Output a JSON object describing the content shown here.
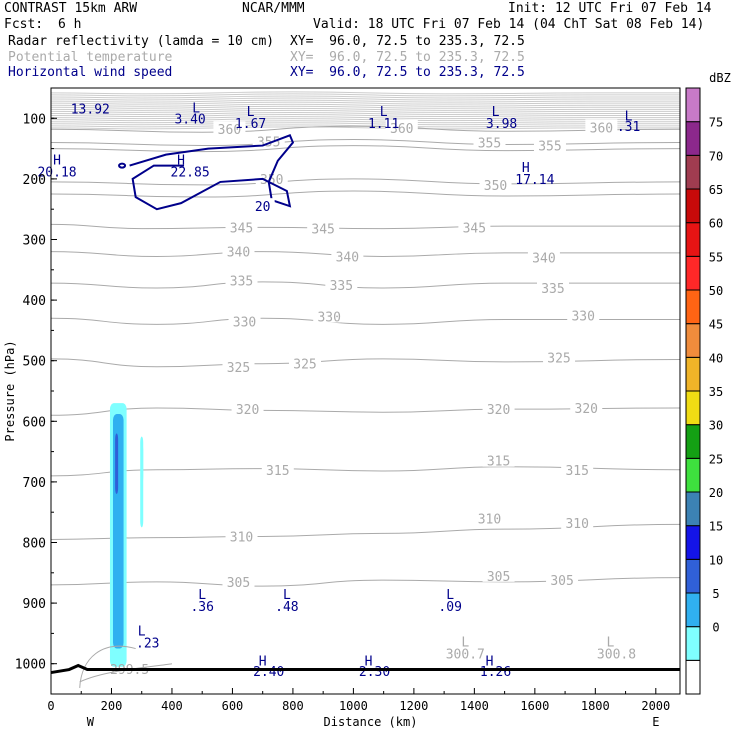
{
  "header": {
    "model": "CONTRAST 15km ARW",
    "org": "NCAR/MMM",
    "init": "Init: 12 UTC Fri 07 Feb 14",
    "fcst_label": "Fcst:",
    "fcst_value": "6 h",
    "valid": "Valid: 18 UTC Fri 07 Feb 14 (04 ChT Sat 08 Feb 14)",
    "field1": "Radar reflectivity (lamda = 10 cm)",
    "field1_xy": "XY=  96.0, 72.5 to 235.3, 72.5",
    "field2": "Potential temperature",
    "field2_xy": "XY=  96.0, 72.5 to 235.3, 72.5",
    "field3": "Horizontal wind speed",
    "field3_xy": "XY=  96.0, 72.5 to 235.3, 72.5"
  },
  "colors": {
    "navy": "#00008b",
    "gray": "#aaaaaa",
    "light_gray_stack": "#cccccc"
  },
  "chart_data": {
    "type": "cross-section",
    "xlabel": "Distance (km)",
    "ylabel": "Pressure (hPa)",
    "xlim": [
      0,
      2080
    ],
    "ylim": [
      1050,
      50
    ],
    "x_ticks": [
      0,
      200,
      400,
      600,
      800,
      1000,
      1200,
      1400,
      1600,
      1800,
      2000
    ],
    "y_ticks": [
      100,
      200,
      300,
      400,
      500,
      600,
      700,
      800,
      900,
      1000
    ],
    "west_label": "W",
    "east_label": "E",
    "theta_contours": [
      {
        "theta": 345,
        "points": [
          [
            0,
            275
          ],
          [
            300,
            282
          ],
          [
            700,
            280
          ],
          [
            1100,
            282
          ],
          [
            1500,
            278
          ],
          [
            2080,
            278
          ]
        ],
        "labels": [
          [
            630,
            280
          ],
          [
            900,
            282
          ],
          [
            1400,
            280
          ]
        ]
      },
      {
        "theta": 340,
        "points": [
          [
            0,
            320
          ],
          [
            350,
            328
          ],
          [
            700,
            320
          ],
          [
            1100,
            328
          ],
          [
            1500,
            322
          ],
          [
            2080,
            322
          ]
        ],
        "labels": [
          [
            620,
            320
          ],
          [
            980,
            328
          ],
          [
            1630,
            330
          ]
        ]
      },
      {
        "theta": 335,
        "points": [
          [
            0,
            372
          ],
          [
            350,
            380
          ],
          [
            700,
            370
          ],
          [
            1100,
            380
          ],
          [
            1500,
            372
          ],
          [
            2080,
            372
          ]
        ],
        "labels": [
          [
            630,
            368
          ],
          [
            960,
            375
          ],
          [
            1660,
            380
          ]
        ]
      },
      {
        "theta": 330,
        "points": [
          [
            0,
            430
          ],
          [
            350,
            440
          ],
          [
            700,
            430
          ],
          [
            1100,
            440
          ],
          [
            1500,
            432
          ],
          [
            2080,
            432
          ]
        ],
        "labels": [
          [
            640,
            435
          ],
          [
            920,
            427
          ],
          [
            1760,
            425
          ]
        ]
      },
      {
        "theta": 325,
        "points": [
          [
            0,
            497
          ],
          [
            350,
            510
          ],
          [
            700,
            505
          ],
          [
            1100,
            497
          ],
          [
            1500,
            502
          ],
          [
            2080,
            498
          ]
        ],
        "labels": [
          [
            620,
            510
          ],
          [
            840,
            505
          ],
          [
            1680,
            495
          ]
        ]
      },
      {
        "theta": 320,
        "points": [
          [
            0,
            590
          ],
          [
            350,
            578
          ],
          [
            700,
            582
          ],
          [
            1100,
            585
          ],
          [
            1500,
            580
          ],
          [
            2080,
            578
          ]
        ],
        "labels": [
          [
            650,
            580
          ],
          [
            1480,
            580
          ],
          [
            1770,
            578
          ]
        ]
      },
      {
        "theta": 315,
        "points": [
          [
            0,
            690
          ],
          [
            350,
            680
          ],
          [
            700,
            678
          ],
          [
            1100,
            682
          ],
          [
            1500,
            675
          ],
          [
            2080,
            680
          ]
        ],
        "labels": [
          [
            750,
            680
          ],
          [
            1480,
            665
          ],
          [
            1740,
            680
          ]
        ]
      },
      {
        "theta": 310,
        "points": [
          [
            0,
            795
          ],
          [
            350,
            792
          ],
          [
            700,
            790
          ],
          [
            1100,
            785
          ],
          [
            1500,
            778
          ],
          [
            2080,
            770
          ]
        ],
        "labels": [
          [
            630,
            790
          ],
          [
            1450,
            760
          ],
          [
            1740,
            768
          ]
        ]
      },
      {
        "theta": 305,
        "points": [
          [
            0,
            870
          ],
          [
            350,
            865
          ],
          [
            700,
            872
          ],
          [
            1100,
            862
          ],
          [
            1500,
            865
          ],
          [
            2080,
            858
          ]
        ],
        "labels": [
          [
            620,
            865
          ],
          [
            1480,
            855
          ],
          [
            1690,
            862
          ]
        ]
      }
    ],
    "theta_upper_labels": [
      {
        "label": "360",
        "x": 590,
        "p": 118
      },
      {
        "label": "360",
        "x": 1160,
        "p": 116
      },
      {
        "label": "360",
        "x": 1820,
        "p": 115
      },
      {
        "label": "355",
        "x": 720,
        "p": 138
      },
      {
        "label": "355",
        "x": 1450,
        "p": 140
      },
      {
        "label": "355",
        "x": 1650,
        "p": 145
      },
      {
        "label": "350",
        "x": 730,
        "p": 200
      },
      {
        "label": "350",
        "x": 1470,
        "p": 210
      }
    ],
    "theta_surface_labels": [
      {
        "label": "L",
        "x": 1370,
        "p": 965
      },
      {
        "label": "300.7",
        "x": 1370,
        "p": 985
      },
      {
        "label": "L",
        "x": 1850,
        "p": 965
      },
      {
        "label": "300.8",
        "x": 1870,
        "p": 985
      },
      {
        "label": "299.5",
        "x": 260,
        "p": 1010
      }
    ],
    "wind_contours": [
      {
        "value": 20,
        "label": "20"
      }
    ],
    "wind_extrema": [
      {
        "label": "H",
        "x": 20,
        "p": 168
      },
      {
        "label": "20.18",
        "x": 20,
        "p": 188
      },
      {
        "label": "H",
        "x": 430,
        "p": 168
      },
      {
        "label": "22.85",
        "x": 460,
        "p": 188
      },
      {
        "label": "H",
        "x": 1570,
        "p": 180
      },
      {
        "label": "17.14",
        "x": 1600,
        "p": 200
      },
      {
        "label": "L",
        "x": 480,
        "p": 82
      },
      {
        "label": "3.40",
        "x": 460,
        "p": 100
      },
      {
        "label": "L",
        "x": 660,
        "p": 88
      },
      {
        "label": "1.67",
        "x": 660,
        "p": 108
      },
      {
        "label": "L",
        "x": 1100,
        "p": 88
      },
      {
        "label": "1.11",
        "x": 1100,
        "p": 108
      },
      {
        "label": "L",
        "x": 1470,
        "p": 88
      },
      {
        "label": "3.98",
        "x": 1490,
        "p": 108
      },
      {
        "label": "L",
        "x": 1910,
        "p": 95
      },
      {
        "label": ".31",
        "x": 1910,
        "p": 113
      },
      {
        "label": "13.92",
        "x": 130,
        "p": 84
      },
      {
        "label": "L",
        "x": 500,
        "p": 885
      },
      {
        "label": ".36",
        "x": 500,
        "p": 905
      },
      {
        "label": "L",
        "x": 780,
        "p": 885
      },
      {
        "label": ".48",
        "x": 780,
        "p": 905
      },
      {
        "label": "L",
        "x": 1320,
        "p": 885
      },
      {
        "label": ".09",
        "x": 1320,
        "p": 905
      },
      {
        "label": "L",
        "x": 300,
        "p": 945
      },
      {
        "label": ".23",
        "x": 320,
        "p": 965
      },
      {
        "label": "H",
        "x": 700,
        "p": 995
      },
      {
        "label": "2.40",
        "x": 720,
        "p": 1012
      },
      {
        "label": "H",
        "x": 1050,
        "p": 995
      },
      {
        "label": "2.30",
        "x": 1070,
        "p": 1012
      },
      {
        "label": "H",
        "x": 1450,
        "p": 995
      },
      {
        "label": "1.26",
        "x": 1470,
        "p": 1012
      }
    ],
    "reflectivity_cells": [
      {
        "dbz": 5,
        "x0": 195,
        "x1": 250,
        "p0": 570,
        "p1": 1005
      },
      {
        "dbz": 10,
        "x0": 205,
        "x1": 240,
        "p0": 588,
        "p1": 975
      },
      {
        "dbz": 15,
        "x0": 212,
        "x1": 222,
        "p0": 620,
        "p1": 720
      },
      {
        "dbz": 5,
        "x0": 295,
        "x1": 305,
        "p0": 625,
        "p1": 775
      },
      {
        "dbz": 5,
        "x0": 300,
        "x1": 305,
        "p0": 640,
        "p1": 700
      }
    ],
    "colorbar": {
      "unit": "dBZ",
      "levels": [
        "0",
        "5",
        "10",
        "15",
        "20",
        "25",
        "30",
        "35",
        "40",
        "45",
        "50",
        "55",
        "60",
        "65",
        "70",
        "75"
      ],
      "colors": [
        "#ffffff",
        "#7fffff",
        "#30b0f0",
        "#3060d8",
        "#1414e8",
        "#3c82b4",
        "#3ee03e",
        "#14a014",
        "#f0dc14",
        "#f0b428",
        "#f08c3c",
        "#ff6414",
        "#ff2828",
        "#e61414",
        "#c80a0a",
        "#a03c50",
        "#8c288c",
        "#c87ac8"
      ]
    }
  }
}
